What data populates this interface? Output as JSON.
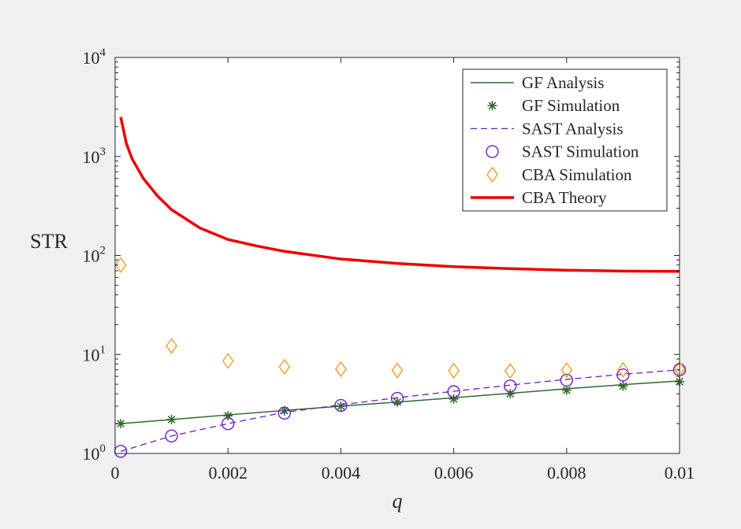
{
  "chart_data": {
    "type": "line",
    "title": "",
    "xlabel": "q",
    "ylabel": "STR",
    "xlim": [
      0,
      0.01
    ],
    "ylim": [
      1,
      10000
    ],
    "yscale": "log",
    "grid": false,
    "legend_position": "top-right",
    "x_ticks": [
      "0",
      "0.002",
      "0.004",
      "0.006",
      "0.008",
      "0.01"
    ],
    "y_ticks": [
      {
        "base": "10",
        "exp": "0"
      },
      {
        "base": "10",
        "exp": "1"
      },
      {
        "base": "10",
        "exp": "2"
      },
      {
        "base": "10",
        "exp": "3"
      },
      {
        "base": "10",
        "exp": "4"
      }
    ],
    "series": [
      {
        "name": "GF Analysis",
        "style": "solid-line",
        "color": "#2e6b2e",
        "x": [
          0.0001,
          0.001,
          0.002,
          0.003,
          0.004,
          0.005,
          0.006,
          0.007,
          0.008,
          0.009,
          0.01
        ],
        "y": [
          2.0,
          2.2,
          2.45,
          2.72,
          3.0,
          3.3,
          3.65,
          4.05,
          4.5,
          4.95,
          5.4
        ]
      },
      {
        "name": "GF Simulation",
        "style": "asterisk",
        "color": "#2e6b2e",
        "x": [
          0.0001,
          0.001,
          0.002,
          0.003,
          0.004,
          0.005,
          0.006,
          0.007,
          0.008,
          0.009,
          0.01
        ],
        "y": [
          2.0,
          2.2,
          2.4,
          2.7,
          3.0,
          3.3,
          3.55,
          4.0,
          4.35,
          4.8,
          5.3
        ]
      },
      {
        "name": "SAST Analysis",
        "style": "dashed-line",
        "color": "#6a1fc0",
        "x": [
          0.0001,
          0.001,
          0.002,
          0.003,
          0.004,
          0.005,
          0.006,
          0.007,
          0.008,
          0.009,
          0.01
        ],
        "y": [
          1.05,
          1.5,
          2.0,
          2.6,
          3.1,
          3.65,
          4.25,
          4.9,
          5.6,
          6.3,
          7.0
        ]
      },
      {
        "name": "SAST Simulation",
        "style": "circle",
        "color": "#6a1fc0",
        "x": [
          0.0001,
          0.001,
          0.002,
          0.003,
          0.004,
          0.005,
          0.006,
          0.007,
          0.008,
          0.009,
          0.01
        ],
        "y": [
          1.05,
          1.5,
          2.0,
          2.55,
          3.05,
          3.6,
          4.2,
          4.8,
          5.5,
          6.2,
          7.0
        ]
      },
      {
        "name": "CBA Simulation",
        "style": "diamond",
        "color": "#f39c1f",
        "x": [
          0.0001,
          0.001,
          0.002,
          0.003,
          0.004,
          0.005,
          0.006,
          0.007,
          0.008,
          0.009,
          0.01
        ],
        "y": [
          80,
          12.2,
          8.6,
          7.5,
          7.1,
          6.9,
          6.85,
          6.8,
          6.95,
          7.0,
          7.1
        ]
      },
      {
        "name": "CBA Theory",
        "style": "thick-line",
        "color": "#ee0000",
        "x": [
          0.0001,
          0.0002,
          0.0003,
          0.0005,
          0.00075,
          0.001,
          0.0015,
          0.002,
          0.0025,
          0.003,
          0.004,
          0.005,
          0.006,
          0.007,
          0.008,
          0.009,
          0.01
        ],
        "y": [
          2500,
          1350,
          950,
          600,
          400,
          290,
          190,
          145,
          125,
          110,
          92,
          83,
          77,
          73.5,
          71,
          69.5,
          69
        ]
      }
    ]
  }
}
